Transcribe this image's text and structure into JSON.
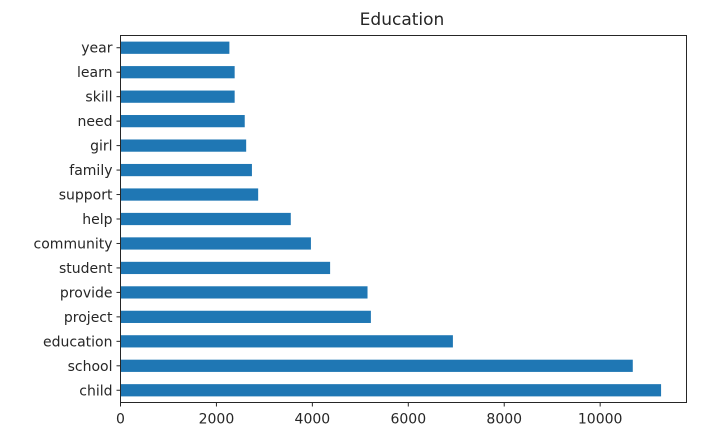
{
  "chart_data": {
    "type": "bar",
    "orientation": "horizontal",
    "title": "Education",
    "xlabel": "",
    "ylabel": "",
    "categories": [
      "child",
      "school",
      "education",
      "project",
      "provide",
      "student",
      "community",
      "help",
      "support",
      "family",
      "girl",
      "need",
      "skill",
      "learn",
      "year"
    ],
    "values": [
      11270,
      10680,
      6930,
      5220,
      5150,
      4370,
      3970,
      3550,
      2870,
      2740,
      2620,
      2590,
      2380,
      2380,
      2270
    ],
    "xlim": [
      0,
      11800
    ],
    "xticks": [
      0,
      2000,
      4000,
      6000,
      8000,
      10000
    ],
    "grid": false,
    "legend": "none",
    "bar_color": "#1f77b4"
  }
}
